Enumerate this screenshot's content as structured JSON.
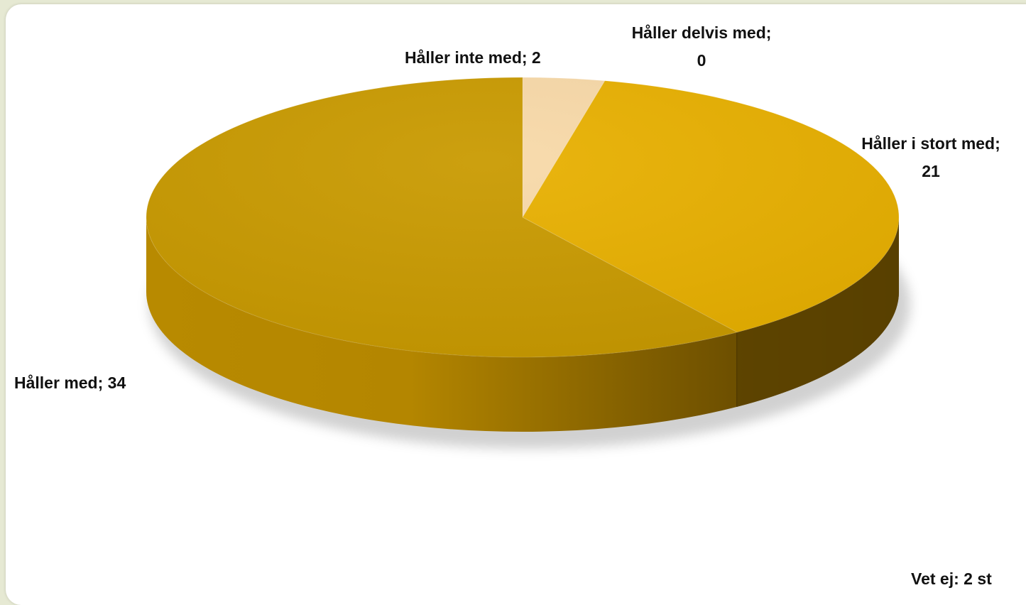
{
  "chart_data": {
    "type": "pie",
    "style": "3d",
    "title": "",
    "slices": [
      {
        "label": "Håller med",
        "value": 34,
        "color": "#c99a00",
        "label_text": "Håller med; 34"
      },
      {
        "label": "Håller i stort med",
        "value": 21,
        "color": "#e8b000",
        "label_lines": [
          "Håller i stort med;",
          "21"
        ]
      },
      {
        "label": "Håller delvis med",
        "value": 0,
        "color": "#ffc000",
        "label_lines": [
          "Håller delvis med;",
          "0"
        ]
      },
      {
        "label": "Håller inte med",
        "value": 2,
        "color": "#f8d9a8",
        "label_text": "Håller inte med; 2"
      }
    ],
    "note": "Vet ej: 2 st"
  },
  "colors": {
    "background": "#e6e9d3",
    "panel": "#ffffff"
  }
}
